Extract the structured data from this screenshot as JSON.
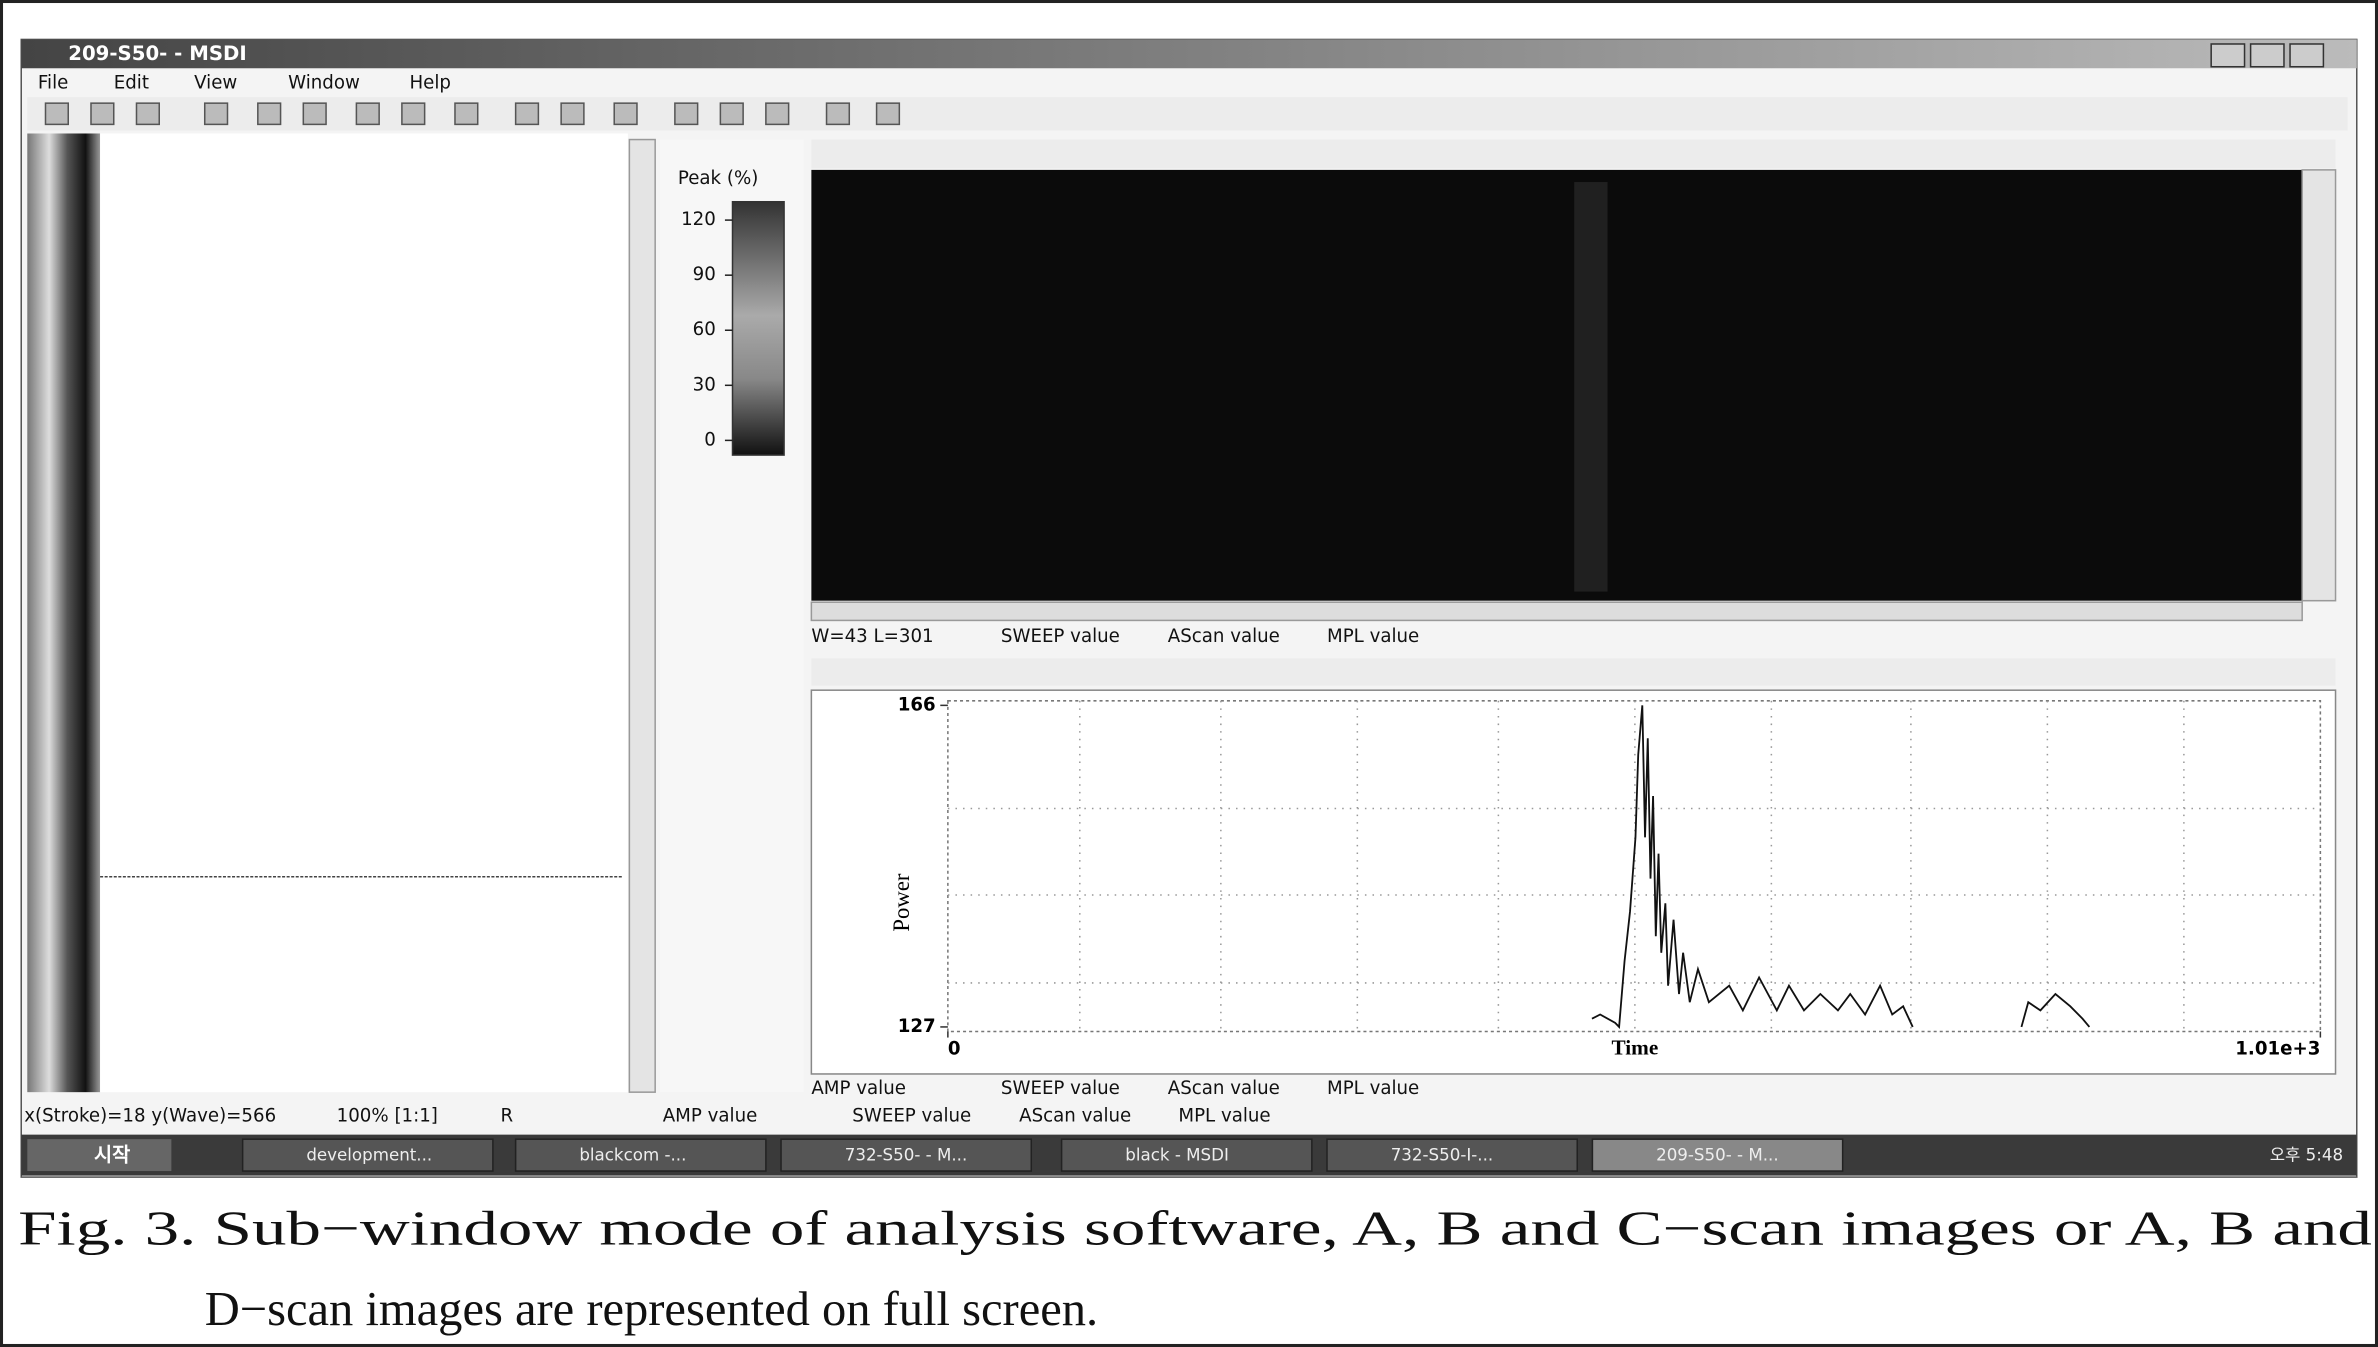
{
  "window": {
    "title": "209-S50- - MSDI",
    "menu": [
      "File",
      "Edit",
      "View",
      "Window",
      "Help"
    ]
  },
  "colorbar": {
    "title": "Peak (%)",
    "lim": [
      -8,
      130
    ],
    "ticks": [
      120,
      90,
      60,
      30,
      0
    ]
  },
  "cscan_status": [
    "W=43 L=301",
    "SWEEP value",
    "AScan value",
    "MPL value"
  ],
  "ascan": {
    "type": "line",
    "ylabel": "Power",
    "xlabel": "Time",
    "xlim": [
      0,
      1010
    ],
    "ylim": [
      127,
      166
    ],
    "xticks": [
      0,
      {
        "value": 1010,
        "label": "1.01e+3"
      }
    ],
    "yticks": [
      166,
      127
    ],
    "color": "#111111",
    "x": [
      474,
      480,
      491,
      494,
      498,
      502,
      506,
      508,
      511,
      513,
      515,
      517,
      519,
      521,
      523,
      525,
      528,
      530,
      534,
      538,
      541,
      546,
      552,
      560,
      575,
      585,
      597,
      610,
      619,
      630,
      642,
      655,
      664,
      675,
      686,
      695,
      703,
      710,
      750,
      790,
      795,
      804,
      815,
      826,
      835,
      840
    ],
    "values": [
      128,
      128.5,
      127.5,
      127,
      135,
      141,
      150,
      160,
      166,
      150,
      162,
      145,
      155,
      138,
      148,
      136,
      142,
      132,
      140,
      131,
      136,
      130,
      134,
      130,
      132,
      129,
      133,
      129,
      132,
      129,
      131,
      129,
      131,
      128.5,
      132,
      128.5,
      129.5,
      127,
      null,
      127,
      130,
      129,
      131,
      129.5,
      128,
      127
    ]
  },
  "ascan_status": [
    "AMP value",
    "SWEEP value",
    "AScan value",
    "MPL value"
  ],
  "statusbar": [
    "x(Stroke)=18 y(Wave)=566",
    "100% [1:1]",
    "R",
    "AMP value",
    "SWEEP value",
    "AScan value",
    "MPL value"
  ],
  "taskbar": {
    "start": "시작",
    "items": [
      "development...",
      "blackcom -...",
      "732-S50- - M...",
      "black - MSDI",
      "732-S50-I-...",
      "209-S50- - M..."
    ],
    "clock": "오후 5:48"
  },
  "caption": [
    "Fig. 3. Sub−window mode of analysis software, A, B and C−scan images or A, B and",
    "D−scan images are represented on full screen."
  ]
}
